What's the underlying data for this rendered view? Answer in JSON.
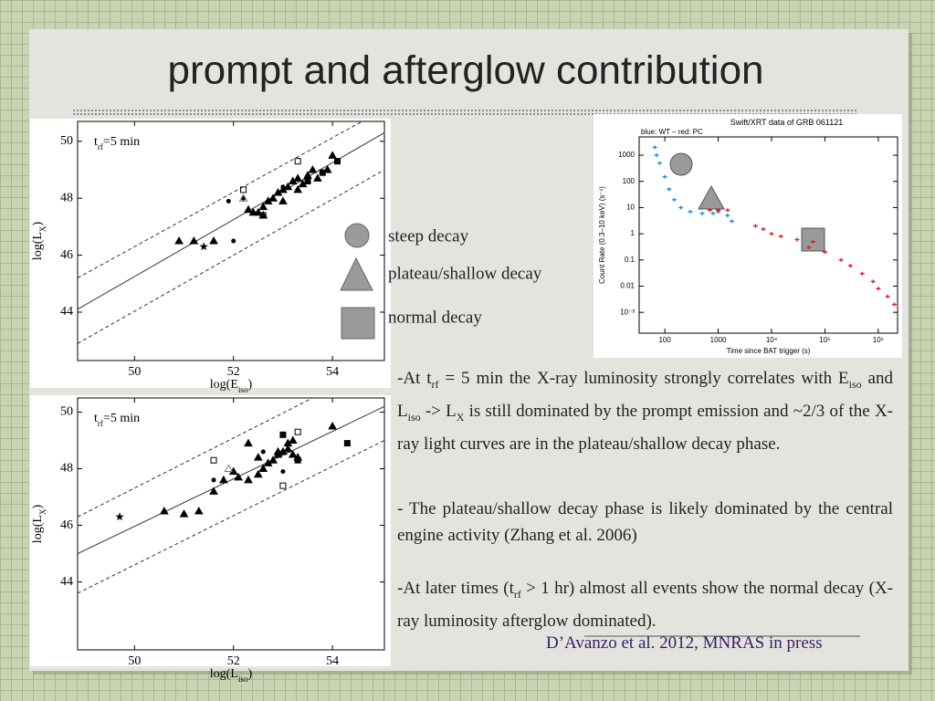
{
  "slide": {
    "title": "prompt and afterglow contribution",
    "legend": [
      "steep decay",
      "plateau/shallow decay",
      "normal decay"
    ],
    "paragraphs": [
      [
        "-At t",
        "rf",
        " = 5 min the X-ray luminosity strongly correlates with E",
        "iso",
        " and L",
        "iso",
        " -> L",
        "X",
        " is still dominated by the prompt emission and ~2/3 of the X-ray light curves are in the plateau/shallow decay phase."
      ],
      [
        " - The plateau/shallow decay phase is likely dominated by the central engine activity (Zhang et al. 2006)"
      ],
      [
        "-At later times (t",
        "rf",
        " > 1 hr) almost all events show the normal decay (X-ray luminosity afterglow dominated)."
      ]
    ],
    "citation": "D’Avanzo et al. 2012, MNRAS in press"
  },
  "chart_data": [
    {
      "type": "scatter",
      "annotation": [
        "t",
        "rf",
        "=5 min"
      ],
      "xlabel": [
        "log(E",
        "iso",
        ")"
      ],
      "ylabel": [
        "log(L",
        "X",
        ")"
      ],
      "xlim": [
        48.85,
        55.05
      ],
      "ylim": [
        42.3,
        50.7
      ],
      "xticks": [
        50,
        52,
        54
      ],
      "yticks": [
        44,
        46,
        48,
        50
      ],
      "lines": [
        {
          "style": "solid",
          "x": [
            48.85,
            55.05
          ],
          "y": [
            44.1,
            50.3
          ]
        },
        {
          "style": "dashed",
          "x": [
            48.85,
            54.6
          ],
          "y": [
            45.2,
            50.7
          ]
        },
        {
          "style": "dashed",
          "x": [
            48.85,
            55.05
          ],
          "y": [
            42.9,
            49.0
          ]
        }
      ],
      "series": [
        {
          "marker": "triangle",
          "color": "#000000",
          "x": [
            50.9,
            51.2,
            51.6,
            52.3,
            52.4,
            52.5,
            52.6,
            52.7,
            52.8,
            52.9,
            53.0,
            53.1,
            53.2,
            53.3,
            53.4,
            53.5,
            53.6,
            53.7,
            53.9,
            54.0,
            52.6,
            53.0,
            53.3
          ],
          "y": [
            46.5,
            46.5,
            46.5,
            47.6,
            47.5,
            47.5,
            47.7,
            47.9,
            48.0,
            48.2,
            48.3,
            48.4,
            48.6,
            48.7,
            48.5,
            48.8,
            49.0,
            48.7,
            49.0,
            49.5,
            47.4,
            47.9,
            48.3
          ]
        },
        {
          "marker": "circle",
          "color": "#000000",
          "x": [
            51.9,
            52.0,
            52.2,
            53.0
          ],
          "y": [
            47.9,
            46.5,
            48.0,
            48.4
          ]
        },
        {
          "marker": "square",
          "color": "#000000",
          "x": [
            53.8,
            54.1,
            53.5
          ],
          "y": [
            48.9,
            49.3,
            48.6
          ]
        },
        {
          "marker": "open-square",
          "color": "#000000",
          "x": [
            52.2,
            53.3,
            52.6
          ],
          "y": [
            48.3,
            49.3,
            47.4
          ]
        },
        {
          "marker": "open-triangle",
          "color": "#777777",
          "x": [
            52.2
          ],
          "y": [
            48.0
          ]
        },
        {
          "marker": "star",
          "color": "#000000",
          "x": [
            51.4
          ],
          "y": [
            46.3
          ]
        }
      ]
    },
    {
      "type": "scatter",
      "annotation": [
        "t",
        "rf",
        "=5 min"
      ],
      "xlabel": [
        "log(L",
        "iso",
        ")"
      ],
      "ylabel": [
        "log(L",
        "X",
        ")"
      ],
      "xlim": [
        48.85,
        55.05
      ],
      "ylim": [
        41.6,
        50.5
      ],
      "xticks": [
        50,
        52,
        54
      ],
      "yticks": [
        44,
        46,
        48,
        50
      ],
      "lines": [
        {
          "style": "solid",
          "x": [
            48.85,
            55.05
          ],
          "y": [
            45.0,
            50.2
          ]
        },
        {
          "style": "dashed",
          "x": [
            48.85,
            53.6
          ],
          "y": [
            46.3,
            50.5
          ]
        },
        {
          "style": "dashed",
          "x": [
            48.85,
            55.05
          ],
          "y": [
            43.6,
            49.0
          ]
        }
      ],
      "series": [
        {
          "marker": "triangle",
          "color": "#000000",
          "x": [
            50.6,
            51.0,
            51.3,
            51.6,
            51.8,
            52.0,
            52.1,
            52.3,
            52.5,
            52.6,
            52.7,
            52.8,
            52.9,
            53.0,
            53.1,
            53.2,
            53.3,
            53.1,
            53.2,
            52.9,
            54.0,
            52.3,
            52.5
          ],
          "y": [
            46.5,
            46.4,
            46.5,
            47.2,
            47.6,
            47.9,
            47.7,
            47.6,
            47.8,
            48.0,
            48.2,
            48.3,
            48.6,
            48.6,
            48.7,
            48.5,
            48.4,
            48.9,
            49.0,
            48.5,
            49.5,
            48.9,
            48.4
          ]
        },
        {
          "marker": "circle",
          "color": "#000000",
          "x": [
            51.0,
            51.6,
            52.6,
            53.0
          ],
          "y": [
            46.4,
            47.6,
            48.6,
            47.9
          ]
        },
        {
          "marker": "square",
          "color": "#000000",
          "x": [
            53.0,
            53.3,
            54.3
          ],
          "y": [
            49.2,
            48.3,
            48.9
          ]
        },
        {
          "marker": "open-square",
          "color": "#000000",
          "x": [
            51.6,
            53.0,
            53.3
          ],
          "y": [
            48.3,
            47.4,
            49.3
          ]
        },
        {
          "marker": "open-triangle",
          "color": "#777777",
          "x": [
            51.9
          ],
          "y": [
            48.0
          ]
        },
        {
          "marker": "star",
          "color": "#000000",
          "x": [
            49.7
          ],
          "y": [
            46.3
          ]
        }
      ]
    },
    {
      "type": "scatter",
      "title": "Swift/XRT data of GRB 061121",
      "subtitle": "blue: WT – red: PC",
      "xlabel": "Time since BAT trigger (s)",
      "ylabel": "Count Rate (0.3–10 keV) (s⁻¹)",
      "xlog": true,
      "ylog": true,
      "xlim": [
        33,
        2300000
      ],
      "ylim": [
        0.00016,
        5000
      ],
      "xticks": [
        100,
        1000,
        {
          "value": 10000,
          "label": "10⁴"
        },
        {
          "value": 100000,
          "label": "10⁵"
        },
        {
          "value": 1000000,
          "label": "10⁶"
        }
      ],
      "yticks": [
        {
          "value": 0.001,
          "label": "10⁻³"
        },
        0.01,
        0.1,
        1,
        10,
        100,
        1000
      ],
      "series": [
        {
          "marker": "cross",
          "color": "#1e8fe8",
          "x": [
            65,
            70,
            80,
            100,
            120,
            150,
            200,
            300,
            500,
            800,
            1000,
            1500,
            1800
          ],
          "y": [
            2000,
            1000,
            500,
            150,
            50,
            20,
            10,
            7,
            6,
            6,
            7,
            5,
            3
          ]
        },
        {
          "marker": "cross",
          "color": "#e02020",
          "x": [
            700,
            1000,
            1500,
            5000,
            7000,
            10000,
            15000,
            30000,
            50000,
            60000,
            100000,
            200000,
            300000,
            500000,
            800000,
            1000000,
            1500000,
            2000000
          ],
          "y": [
            8,
            8,
            8,
            2,
            1.5,
            1,
            0.8,
            0.6,
            0.3,
            0.5,
            0.2,
            0.1,
            0.06,
            0.03,
            0.015,
            0.008,
            0.004,
            0.002
          ]
        }
      ]
    }
  ]
}
